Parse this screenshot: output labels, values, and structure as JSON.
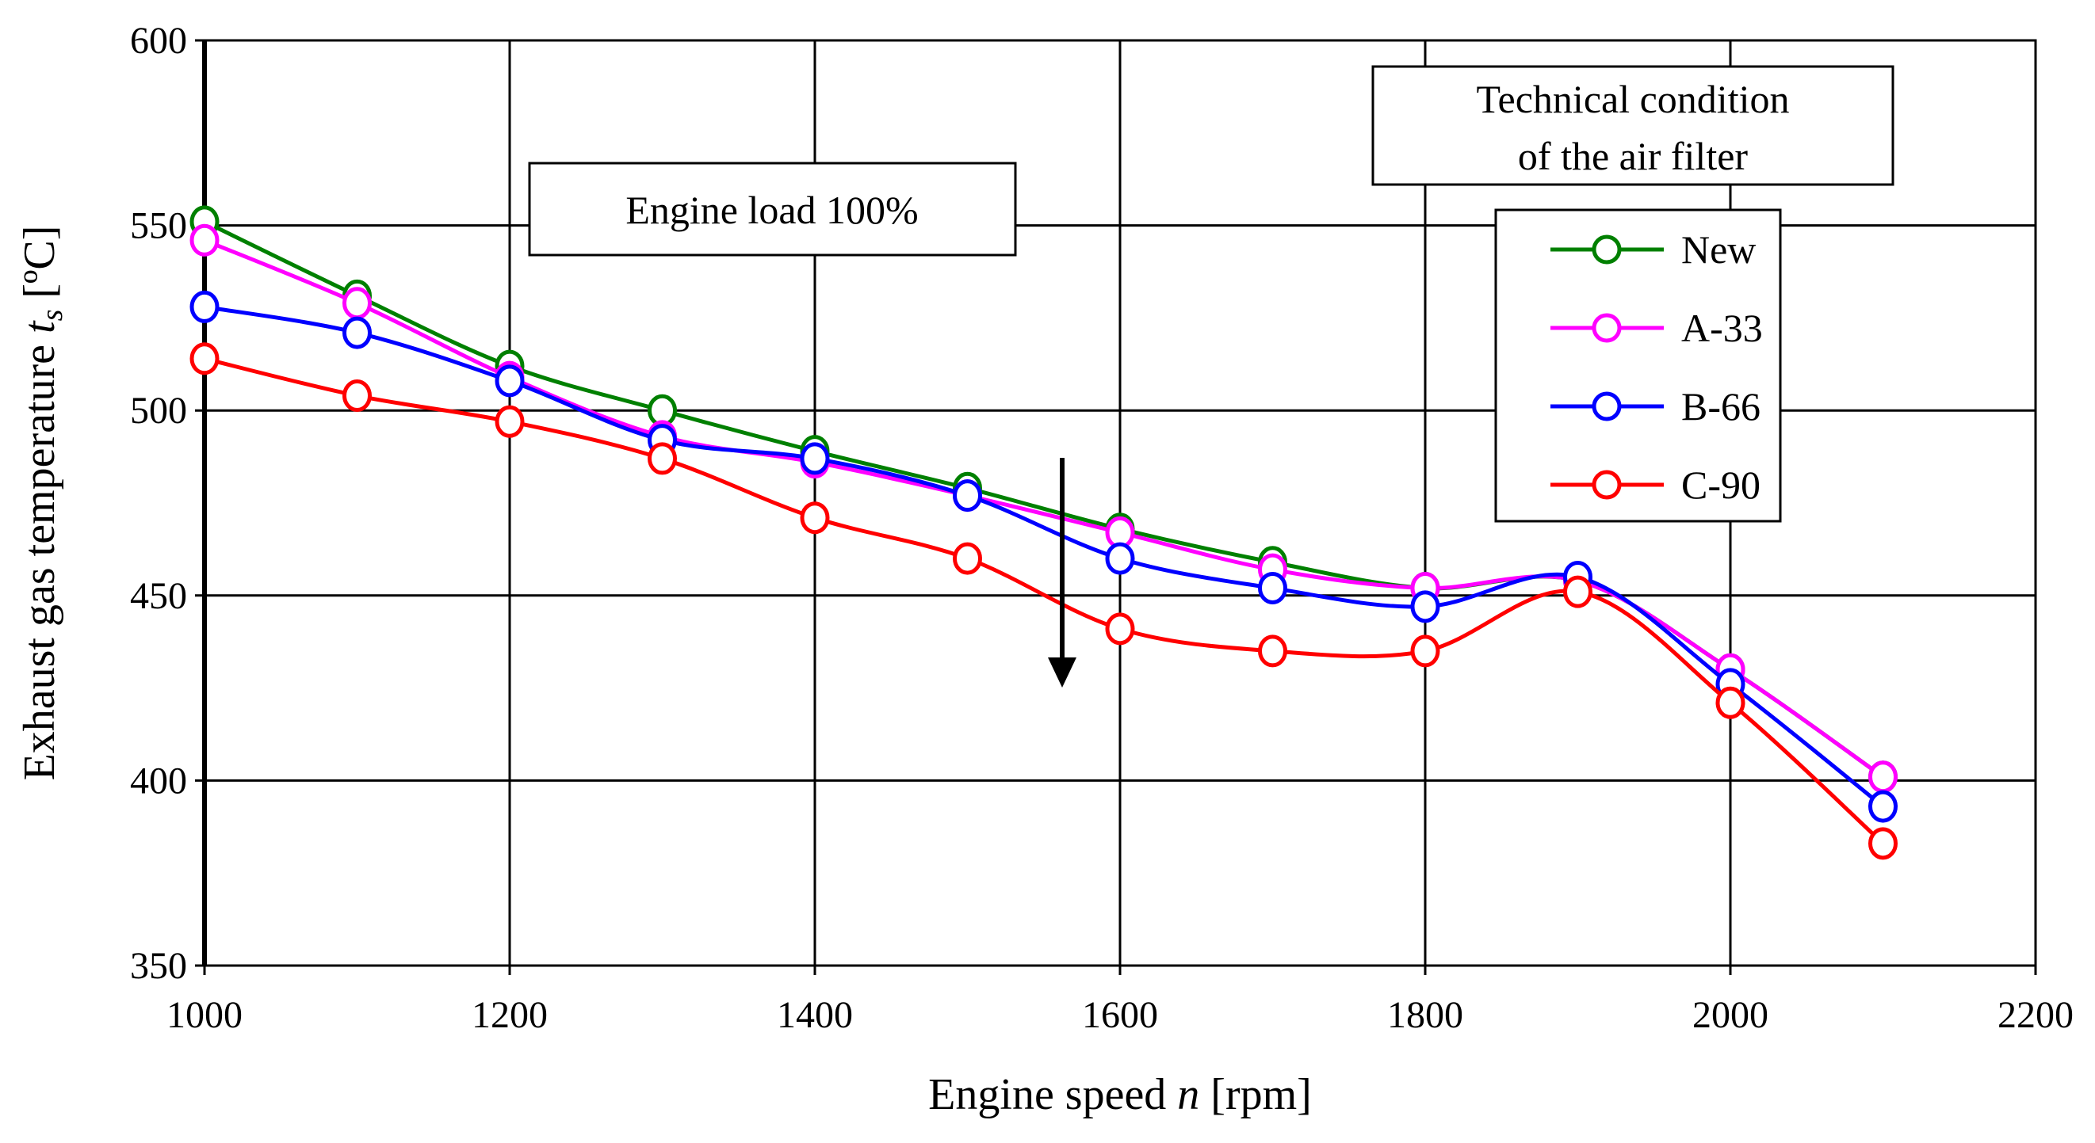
{
  "chart_data": {
    "type": "line",
    "title": "",
    "xlabel": {
      "prefix": "Engine speed ",
      "var": "n",
      "suffix": " [rpm]"
    },
    "ylabel": {
      "prefix": "Exhaust gas temperature ",
      "var": "t",
      "sub": "s",
      "suffix": " [ºC]"
    },
    "xlim": [
      1000,
      2200
    ],
    "ylim": [
      350,
      600
    ],
    "xticks": [
      1000,
      1200,
      1400,
      1600,
      1800,
      2000,
      2200
    ],
    "yticks": [
      350,
      400,
      450,
      500,
      550,
      600
    ],
    "grid": true,
    "smooth": true,
    "x": [
      1000,
      1100,
      1200,
      1300,
      1400,
      1500,
      1600,
      1700,
      1800,
      1900,
      2000,
      2100
    ],
    "series": [
      {
        "name": "New",
        "color": "#008000",
        "values": [
          551,
          531,
          512,
          500,
          489,
          479,
          468,
          459,
          452,
          454,
          430,
          401
        ]
      },
      {
        "name": "A-33",
        "color": "#ff00ff",
        "values": [
          546,
          529,
          509,
          493,
          486,
          477,
          467,
          457,
          452,
          454,
          430,
          401
        ]
      },
      {
        "name": "B-66",
        "color": "#0000ff",
        "values": [
          528,
          521,
          508,
          492,
          487,
          477,
          460,
          452,
          447,
          455,
          426,
          393
        ]
      },
      {
        "name": "C-90",
        "color": "#ff0000",
        "values": [
          514,
          504,
          497,
          487,
          471,
          460,
          441,
          435,
          435,
          451,
          421,
          383
        ]
      }
    ],
    "annotations": {
      "load_box": "Engine load 100%",
      "legend_title_line1": "Technical condition",
      "legend_title_line2": "of the air filter",
      "arrow": "downward arrow indicating decreasing temperature with filter clogging"
    },
    "legend_placement": "top-right"
  }
}
